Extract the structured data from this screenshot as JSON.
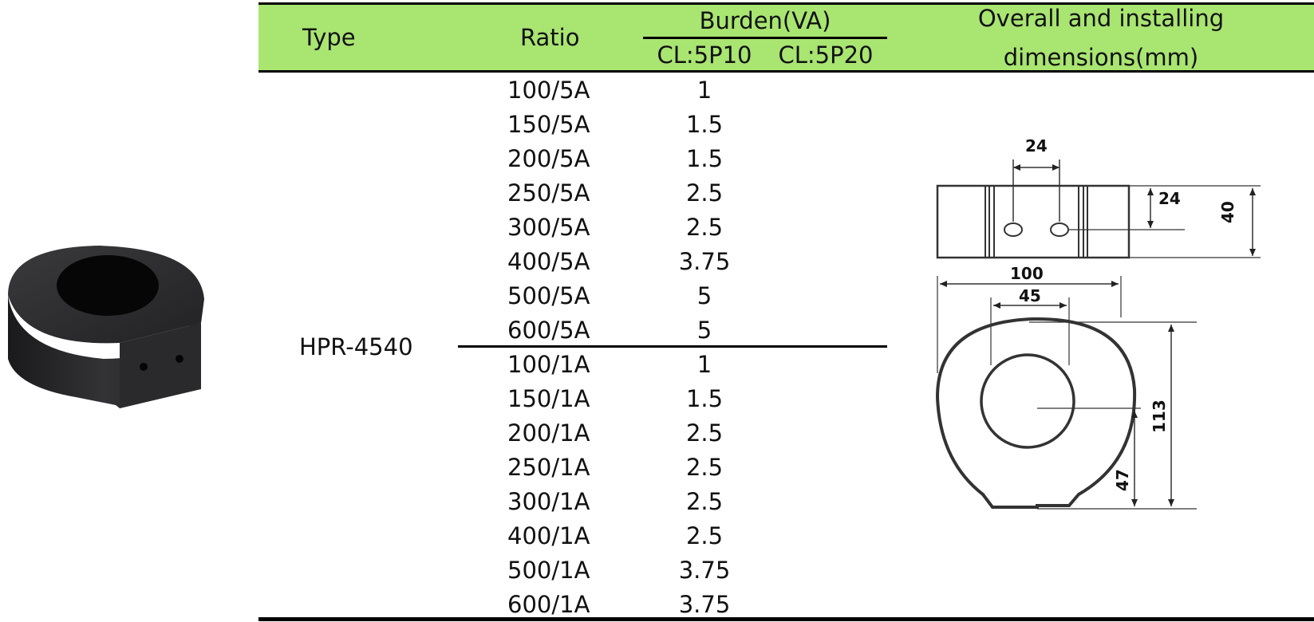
{
  "header": {
    "type": "Type",
    "ratio": "Ratio",
    "burden": "Burden(VA)",
    "class_a": "CL:5P10",
    "class_b": "CL:5P20",
    "dimensions_line1": "Overall and installing",
    "dimensions_line2": "dimensions(mm)"
  },
  "product": {
    "type": "HPR-4540"
  },
  "rows": [
    {
      "ratio": "100/5A",
      "cl5p10": "1",
      "cl5p20": ""
    },
    {
      "ratio": "150/5A",
      "cl5p10": "1.5",
      "cl5p20": ""
    },
    {
      "ratio": "200/5A",
      "cl5p10": "1.5",
      "cl5p20": ""
    },
    {
      "ratio": "250/5A",
      "cl5p10": "2.5",
      "cl5p20": ""
    },
    {
      "ratio": "300/5A",
      "cl5p10": "2.5",
      "cl5p20": ""
    },
    {
      "ratio": "400/5A",
      "cl5p10": "3.75",
      "cl5p20": ""
    },
    {
      "ratio": "500/5A",
      "cl5p10": "5",
      "cl5p20": ""
    },
    {
      "ratio": "600/5A",
      "cl5p10": "5",
      "cl5p20": ""
    },
    {
      "ratio": "100/1A",
      "cl5p10": "1",
      "cl5p20": ""
    },
    {
      "ratio": "150/1A",
      "cl5p10": "1.5",
      "cl5p20": ""
    },
    {
      "ratio": "200/1A",
      "cl5p10": "2.5",
      "cl5p20": ""
    },
    {
      "ratio": "250/1A",
      "cl5p10": "2.5",
      "cl5p20": ""
    },
    {
      "ratio": "300/1A",
      "cl5p10": "2.5",
      "cl5p20": ""
    },
    {
      "ratio": "400/1A",
      "cl5p10": "2.5",
      "cl5p20": ""
    },
    {
      "ratio": "500/1A",
      "cl5p10": "3.75",
      "cl5p20": ""
    },
    {
      "ratio": "600/1A",
      "cl5p10": "3.75",
      "cl5p20": ""
    }
  ],
  "drawing": {
    "dim_slot_width": "24",
    "dim_slot_height": "24",
    "dim_side_height": "40",
    "dim_overall_width": "100",
    "dim_hole_diameter": "45",
    "dim_overall_height": "113",
    "dim_center_height": "47"
  },
  "colors": {
    "header_band": "#a9e571",
    "product_body": "#2e2e30"
  }
}
